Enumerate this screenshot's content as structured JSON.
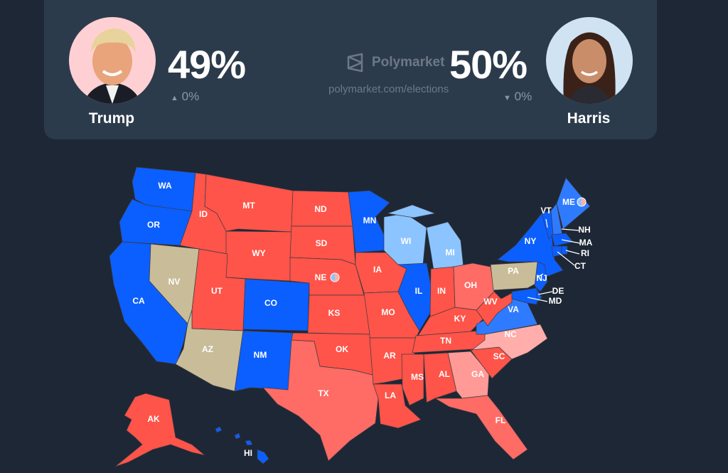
{
  "candidates": {
    "trump": {
      "name": "Trump",
      "percent": "49%",
      "change": "0%",
      "change_direction": "up",
      "avatar_bg": "#ffd0d3"
    },
    "harris": {
      "name": "Harris",
      "percent": "50%",
      "change": "0%",
      "change_direction": "down",
      "avatar_bg": "#cfe3f3"
    }
  },
  "brand": {
    "name": "Polymarket",
    "url": "polymarket.com/elections",
    "icon": "polymarket-logo-icon"
  },
  "colors": {
    "safe_r": "#ff5449",
    "likely_r": "#ff6b65",
    "lean_r": "#ff9a96",
    "tilt_r": "#ffaeab",
    "tossup": "#c9bc98",
    "lean_d": "#8cc4ff",
    "likely_d": "#2f7bff",
    "safe_d": "#0b5fff"
  },
  "map": {
    "states": [
      {
        "code": "WA",
        "rating": "safe_d"
      },
      {
        "code": "OR",
        "rating": "safe_d"
      },
      {
        "code": "CA",
        "rating": "safe_d"
      },
      {
        "code": "NV",
        "rating": "tossup"
      },
      {
        "code": "ID",
        "rating": "safe_r"
      },
      {
        "code": "MT",
        "rating": "safe_r"
      },
      {
        "code": "WY",
        "rating": "safe_r"
      },
      {
        "code": "UT",
        "rating": "safe_r"
      },
      {
        "code": "AZ",
        "rating": "tossup"
      },
      {
        "code": "CO",
        "rating": "safe_d"
      },
      {
        "code": "NM",
        "rating": "safe_d"
      },
      {
        "code": "ND",
        "rating": "safe_r"
      },
      {
        "code": "SD",
        "rating": "safe_r"
      },
      {
        "code": "NE",
        "rating": "safe_r",
        "split": true
      },
      {
        "code": "KS",
        "rating": "safe_r"
      },
      {
        "code": "OK",
        "rating": "safe_r"
      },
      {
        "code": "TX",
        "rating": "likely_r"
      },
      {
        "code": "MN",
        "rating": "safe_d"
      },
      {
        "code": "IA",
        "rating": "safe_r"
      },
      {
        "code": "MO",
        "rating": "safe_r"
      },
      {
        "code": "AR",
        "rating": "safe_r"
      },
      {
        "code": "LA",
        "rating": "safe_r"
      },
      {
        "code": "WI",
        "rating": "lean_d"
      },
      {
        "code": "IL",
        "rating": "safe_d"
      },
      {
        "code": "MI",
        "rating": "lean_d"
      },
      {
        "code": "IN",
        "rating": "safe_r"
      },
      {
        "code": "OH",
        "rating": "likely_r"
      },
      {
        "code": "KY",
        "rating": "safe_r"
      },
      {
        "code": "TN",
        "rating": "safe_r"
      },
      {
        "code": "MS",
        "rating": "safe_r"
      },
      {
        "code": "AL",
        "rating": "safe_r"
      },
      {
        "code": "GA",
        "rating": "lean_r"
      },
      {
        "code": "SC",
        "rating": "safe_r"
      },
      {
        "code": "NC",
        "rating": "tilt_r"
      },
      {
        "code": "FL",
        "rating": "likely_r"
      },
      {
        "code": "VA",
        "rating": "likely_d"
      },
      {
        "code": "WV",
        "rating": "safe_r"
      },
      {
        "code": "PA",
        "rating": "tossup"
      },
      {
        "code": "NY",
        "rating": "safe_d"
      },
      {
        "code": "NJ",
        "rating": "safe_d"
      },
      {
        "code": "DE",
        "rating": "safe_d"
      },
      {
        "code": "MD",
        "rating": "safe_d"
      },
      {
        "code": "VT",
        "rating": "safe_d"
      },
      {
        "code": "NH",
        "rating": "likely_d"
      },
      {
        "code": "ME",
        "rating": "likely_d",
        "split": true
      },
      {
        "code": "MA",
        "rating": "safe_d"
      },
      {
        "code": "CT",
        "rating": "safe_d"
      },
      {
        "code": "RI",
        "rating": "safe_d"
      },
      {
        "code": "AK",
        "rating": "safe_r"
      },
      {
        "code": "HI",
        "rating": "safe_d"
      }
    ]
  }
}
